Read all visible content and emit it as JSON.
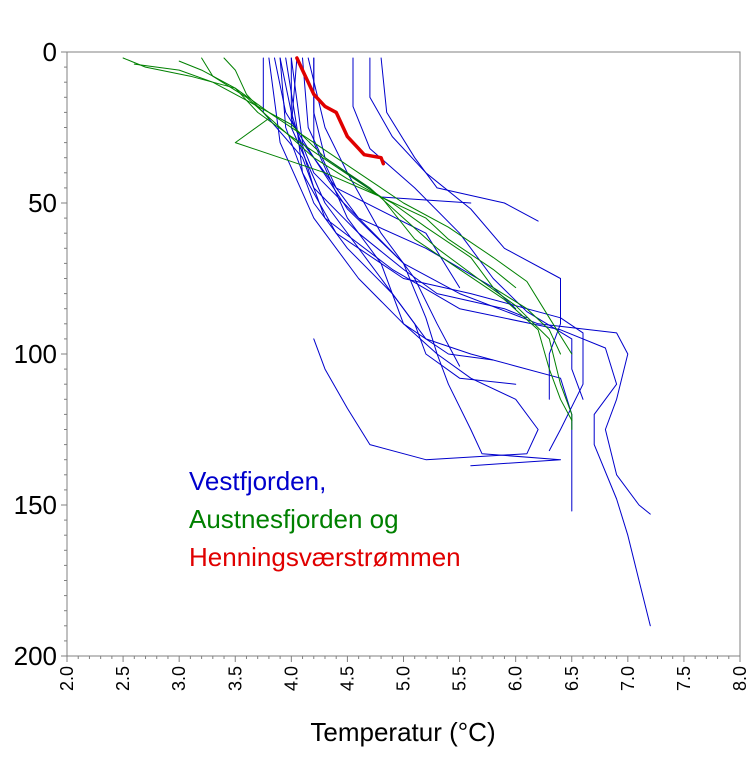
{
  "chart_data": {
    "type": "line",
    "title": "",
    "xlabel": "Temperatur (°C)",
    "ylabel": "",
    "xlim": [
      2.0,
      8.0
    ],
    "ylim": [
      0,
      200
    ],
    "y_inverted": true,
    "x_ticks": [
      "2.0",
      "2.5",
      "3.0",
      "3.5",
      "4.0",
      "4.5",
      "5.0",
      "5.5",
      "6.0",
      "6.5",
      "7.0",
      "7.5",
      "8.0"
    ],
    "y_ticks": [
      "0",
      "50",
      "100",
      "150",
      "200"
    ],
    "grid": false,
    "legend": [
      {
        "label": "Vestfjorden,",
        "color": "#0000cc"
      },
      {
        "label": "Austnesfjorden og",
        "color": "#008000"
      },
      {
        "label": "Henningsværstrømmen",
        "color": "#e00000"
      }
    ],
    "series": [
      {
        "group": "Vestfjorden",
        "color": "#0000cc",
        "points": [
          [
            4.2,
            2
          ],
          [
            4.2,
            20
          ],
          [
            4.3,
            35
          ],
          [
            4.8,
            48
          ],
          [
            5.6,
            50
          ]
        ]
      },
      {
        "group": "Vestfjorden",
        "color": "#0000cc",
        "points": [
          [
            4.1,
            2
          ],
          [
            4.15,
            25
          ],
          [
            4.4,
            45
          ],
          [
            5.2,
            60
          ],
          [
            5.5,
            78
          ]
        ]
      },
      {
        "group": "Vestfjorden",
        "color": "#0000cc",
        "points": [
          [
            4.0,
            2
          ],
          [
            4.0,
            22
          ],
          [
            4.2,
            40
          ],
          [
            4.6,
            55
          ],
          [
            5.2,
            65
          ],
          [
            5.8,
            78
          ],
          [
            6.0,
            85
          ]
        ]
      },
      {
        "group": "Vestfjorden",
        "color": "#0000cc",
        "points": [
          [
            3.95,
            2
          ],
          [
            4.05,
            25
          ],
          [
            4.1,
            40
          ],
          [
            4.4,
            60
          ],
          [
            5.0,
            75
          ],
          [
            5.6,
            80
          ],
          [
            6.4,
            88
          ],
          [
            6.6,
            93
          ],
          [
            6.6,
            110
          ],
          [
            6.4,
            125
          ],
          [
            6.3,
            132
          ]
        ]
      },
      {
        "group": "Vestfjorden",
        "color": "#0000cc",
        "points": [
          [
            3.85,
            2
          ],
          [
            3.95,
            20
          ],
          [
            4.2,
            35
          ],
          [
            4.5,
            52
          ],
          [
            5.0,
            70
          ],
          [
            5.5,
            80
          ],
          [
            6.2,
            90
          ],
          [
            6.9,
            93
          ],
          [
            7.0,
            100
          ],
          [
            6.9,
            115
          ],
          [
            6.8,
            125
          ],
          [
            6.9,
            140
          ],
          [
            7.1,
            150
          ],
          [
            7.2,
            153
          ]
        ]
      },
      {
        "group": "Vestfjorden",
        "color": "#0000cc",
        "points": [
          [
            3.75,
            2
          ],
          [
            3.75,
            20
          ],
          [
            4.1,
            35
          ],
          [
            4.3,
            55
          ],
          [
            4.9,
            72
          ],
          [
            5.5,
            85
          ],
          [
            6.4,
            92
          ],
          [
            6.8,
            98
          ],
          [
            6.9,
            110
          ],
          [
            6.7,
            120
          ],
          [
            6.7,
            130
          ],
          [
            6.9,
            148
          ],
          [
            7.0,
            160
          ],
          [
            7.1,
            175
          ],
          [
            7.2,
            190
          ]
        ]
      },
      {
        "group": "Vestfjorden",
        "color": "#0000cc",
        "points": [
          [
            4.55,
            2
          ],
          [
            4.55,
            18
          ],
          [
            4.7,
            32
          ],
          [
            5.1,
            45
          ],
          [
            5.5,
            60
          ],
          [
            5.8,
            75
          ],
          [
            6.1,
            86
          ],
          [
            6.5,
            95
          ],
          [
            6.5,
            105
          ],
          [
            6.6,
            115
          ]
        ]
      },
      {
        "group": "Vestfjorden",
        "color": "#0000cc",
        "points": [
          [
            4.7,
            2
          ],
          [
            4.7,
            15
          ],
          [
            4.9,
            28
          ],
          [
            5.2,
            40
          ],
          [
            5.6,
            52
          ],
          [
            5.9,
            65
          ],
          [
            6.4,
            75
          ],
          [
            6.4,
            90
          ],
          [
            6.3,
            100
          ],
          [
            6.3,
            115
          ]
        ]
      },
      {
        "group": "Vestfjorden",
        "color": "#0000cc",
        "points": [
          [
            4.8,
            2
          ],
          [
            4.85,
            20
          ],
          [
            5.1,
            35
          ],
          [
            5.3,
            45
          ],
          [
            5.9,
            50
          ],
          [
            6.2,
            56
          ]
        ]
      },
      {
        "group": "Vestfjorden",
        "color": "#0000cc",
        "points": [
          [
            3.9,
            2
          ],
          [
            4.0,
            20
          ],
          [
            4.2,
            45
          ],
          [
            4.6,
            60
          ],
          [
            5.0,
            72
          ],
          [
            5.3,
            80
          ],
          [
            5.9,
            85
          ],
          [
            6.1,
            88
          ]
        ]
      },
      {
        "group": "Vestfjorden",
        "color": "#0000cc",
        "points": [
          [
            4.15,
            2
          ],
          [
            4.3,
            25
          ],
          [
            4.5,
            40
          ],
          [
            4.8,
            60
          ],
          [
            5.1,
            75
          ],
          [
            5.3,
            90
          ],
          [
            5.5,
            104
          ]
        ]
      },
      {
        "group": "Vestfjorden",
        "color": "#0000cc",
        "points": [
          [
            4.0,
            2
          ],
          [
            4.1,
            30
          ],
          [
            4.6,
            55
          ],
          [
            5.0,
            70
          ],
          [
            5.2,
            88
          ],
          [
            5.3,
            100
          ],
          [
            5.4,
            110
          ],
          [
            5.6,
            125
          ],
          [
            5.7,
            133
          ],
          [
            6.4,
            135
          ],
          [
            5.6,
            137
          ]
        ]
      },
      {
        "group": "Vestfjorden",
        "color": "#0000cc",
        "points": [
          [
            3.9,
            2
          ],
          [
            3.95,
            25
          ],
          [
            4.2,
            50
          ],
          [
            4.5,
            65
          ],
          [
            4.9,
            80
          ],
          [
            5.1,
            90
          ],
          [
            5.2,
            100
          ],
          [
            5.5,
            108
          ],
          [
            6.0,
            110
          ]
        ]
      },
      {
        "group": "Vestfjorden",
        "color": "#0000cc",
        "points": [
          [
            4.05,
            2
          ],
          [
            4.0,
            25
          ],
          [
            4.3,
            50
          ],
          [
            4.7,
            70
          ],
          [
            5.0,
            85
          ],
          [
            5.2,
            95
          ],
          [
            5.6,
            100
          ],
          [
            6.0,
            104
          ],
          [
            6.4,
            108
          ],
          [
            6.5,
            120
          ],
          [
            6.5,
            132
          ],
          [
            6.5,
            145
          ],
          [
            6.5,
            152
          ]
        ]
      },
      {
        "group": "Vestfjorden",
        "color": "#0000cc",
        "points": [
          [
            4.2,
            2
          ],
          [
            4.2,
            30
          ],
          [
            4.5,
            55
          ],
          [
            4.8,
            70
          ],
          [
            5.0,
            90
          ],
          [
            5.4,
            100
          ],
          [
            5.8,
            102
          ]
        ]
      },
      {
        "group": "Vestfjorden",
        "color": "#0000cc",
        "points": [
          [
            3.8,
            2
          ],
          [
            3.9,
            30
          ],
          [
            4.2,
            55
          ],
          [
            4.6,
            75
          ],
          [
            5.0,
            90
          ],
          [
            5.3,
            100
          ],
          [
            5.6,
            108
          ],
          [
            6.0,
            115
          ],
          [
            6.2,
            125
          ],
          [
            6.1,
            133
          ],
          [
            5.2,
            135
          ],
          [
            4.7,
            130
          ],
          [
            4.5,
            118
          ],
          [
            4.3,
            105
          ],
          [
            4.2,
            95
          ]
        ]
      },
      {
        "group": "Austnesfjorden",
        "color": "#008000",
        "points": [
          [
            2.5,
            2
          ],
          [
            2.7,
            5
          ],
          [
            3.1,
            8
          ],
          [
            3.5,
            12
          ],
          [
            3.8,
            20
          ],
          [
            4.2,
            30
          ],
          [
            4.6,
            40
          ],
          [
            5.0,
            50
          ],
          [
            5.4,
            58
          ],
          [
            5.8,
            68
          ],
          [
            6.1,
            76
          ],
          [
            6.3,
            88
          ],
          [
            6.5,
            100
          ]
        ]
      },
      {
        "group": "Austnesfjorden",
        "color": "#008000",
        "points": [
          [
            2.6,
            4
          ],
          [
            3.0,
            6
          ],
          [
            3.3,
            10
          ],
          [
            3.6,
            16
          ],
          [
            4.0,
            24
          ],
          [
            4.3,
            35
          ],
          [
            4.7,
            45
          ],
          [
            5.0,
            55
          ],
          [
            5.3,
            65
          ],
          [
            5.7,
            76
          ],
          [
            6.0,
            84
          ],
          [
            6.3,
            95
          ],
          [
            6.4,
            110
          ],
          [
            6.5,
            120
          ],
          [
            6.5,
            125
          ]
        ]
      },
      {
        "group": "Austnesfjorden",
        "color": "#008000",
        "points": [
          [
            3.0,
            3
          ],
          [
            3.2,
            6
          ],
          [
            3.5,
            12
          ],
          [
            3.7,
            20
          ],
          [
            4.0,
            28
          ],
          [
            4.4,
            38
          ],
          [
            4.8,
            48
          ],
          [
            5.1,
            62
          ],
          [
            5.5,
            72
          ],
          [
            5.9,
            82
          ],
          [
            6.2,
            92
          ],
          [
            6.3,
            105
          ],
          [
            6.4,
            115
          ],
          [
            6.5,
            122
          ]
        ]
      },
      {
        "group": "Austnesfjorden",
        "color": "#008000",
        "points": [
          [
            3.2,
            2
          ],
          [
            3.3,
            8
          ],
          [
            3.6,
            15
          ],
          [
            3.9,
            25
          ],
          [
            4.2,
            35
          ],
          [
            4.5,
            42
          ],
          [
            4.9,
            50
          ],
          [
            5.2,
            58
          ],
          [
            5.6,
            68
          ],
          [
            5.8,
            78
          ],
          [
            6.1,
            85
          ],
          [
            6.3,
            92
          ],
          [
            6.4,
            100
          ]
        ]
      },
      {
        "group": "Austnesfjorden",
        "color": "#008000",
        "points": [
          [
            3.4,
            2
          ],
          [
            3.5,
            6
          ],
          [
            3.6,
            14
          ],
          [
            3.8,
            22
          ],
          [
            3.5,
            30
          ],
          [
            3.9,
            35
          ],
          [
            4.3,
            40
          ],
          [
            4.8,
            48
          ],
          [
            5.2,
            55
          ],
          [
            5.4,
            62
          ],
          [
            5.8,
            72
          ],
          [
            6.0,
            78
          ]
        ]
      },
      {
        "group": "Henningsværstrømmen",
        "color": "#e00000",
        "points": [
          [
            4.05,
            2
          ],
          [
            4.1,
            6
          ],
          [
            4.15,
            10
          ],
          [
            4.2,
            14
          ],
          [
            4.3,
            18
          ],
          [
            4.4,
            20
          ],
          [
            4.45,
            24
          ],
          [
            4.5,
            28
          ],
          [
            4.55,
            30
          ],
          [
            4.6,
            32
          ],
          [
            4.65,
            34
          ],
          [
            4.8,
            35
          ],
          [
            4.82,
            37
          ]
        ],
        "width": 3.5
      }
    ]
  }
}
